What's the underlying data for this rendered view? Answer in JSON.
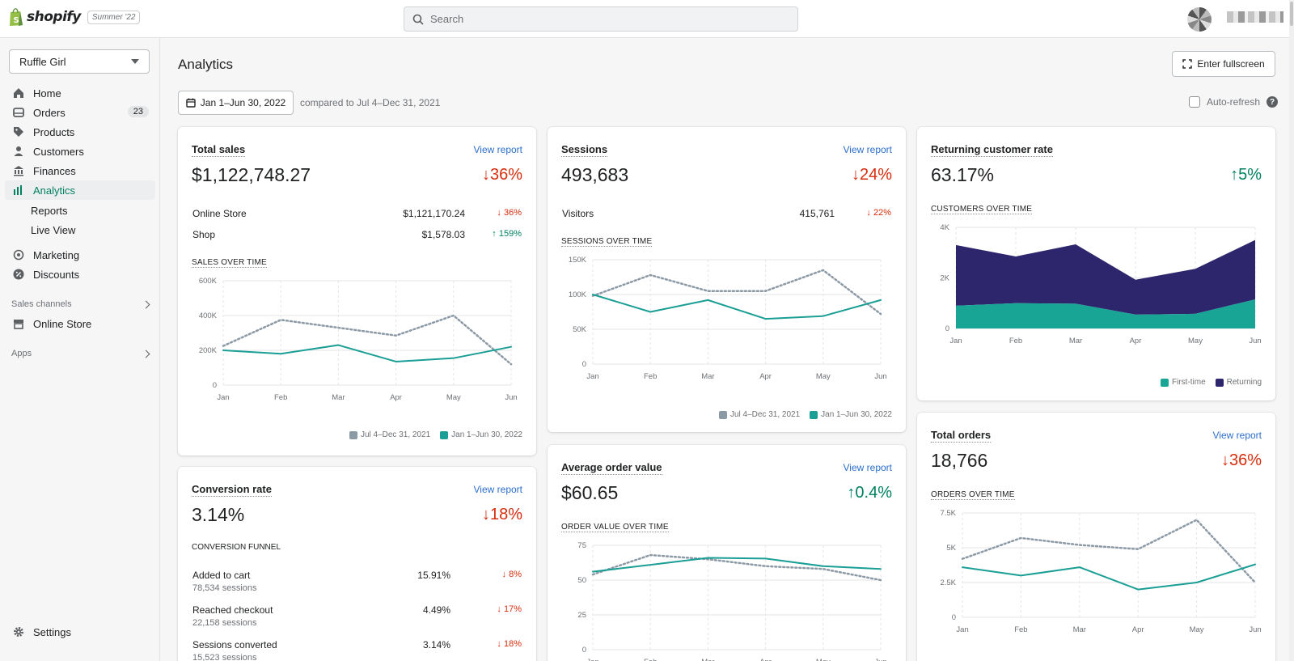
{
  "header": {
    "logo_text": "shopify",
    "edition": "Summer '22",
    "search_placeholder": "Search"
  },
  "sidebar": {
    "store_name": "Ruffle Girl",
    "items": [
      {
        "label": "Home",
        "icon": "home-icon"
      },
      {
        "label": "Orders",
        "icon": "orders-icon",
        "badge": "23"
      },
      {
        "label": "Products",
        "icon": "tag-icon"
      },
      {
        "label": "Customers",
        "icon": "person-icon"
      },
      {
        "label": "Finances",
        "icon": "bank-icon"
      },
      {
        "label": "Analytics",
        "icon": "bar-chart-icon",
        "active": true
      }
    ],
    "analytics_sub": [
      "Reports",
      "Live View"
    ],
    "items2": [
      {
        "label": "Marketing",
        "icon": "target-icon"
      },
      {
        "label": "Discounts",
        "icon": "discount-icon"
      }
    ],
    "sales_channels_label": "Sales channels",
    "online_store": "Online Store",
    "apps_label": "Apps",
    "settings": "Settings"
  },
  "page": {
    "title": "Analytics",
    "fullscreen_label": "Enter fullscreen",
    "date_range": "Jan 1–Jun 30, 2022",
    "compared_to": "compared to Jul 4–Dec 31, 2021",
    "auto_refresh": "Auto-refresh"
  },
  "colors": {
    "current": "#1a9e95",
    "previous": "#8c9aa6",
    "returning": "#2e266c",
    "first_time": "#18a595",
    "down": "#d72c0d",
    "up": "#008060",
    "link": "#2c6ecb"
  },
  "legend": {
    "previous": "Jul 4–Dec 31, 2021",
    "current": "Jan 1–Jun 30, 2022"
  },
  "cards": {
    "total_sales": {
      "title": "Total sales",
      "link": "View report",
      "value": "$1,122,748.27",
      "delta": "36%",
      "rows": [
        {
          "label": "Online Store",
          "value": "$1,121,170.24",
          "delta": "36%",
          "dir": "down"
        },
        {
          "label": "Shop",
          "value": "$1,578.03",
          "delta": "159%",
          "dir": "up"
        }
      ],
      "subtitle": "SALES OVER TIME"
    },
    "sessions": {
      "title": "Sessions",
      "link": "View report",
      "value": "493,683",
      "delta": "24%",
      "rows": [
        {
          "label": "Visitors",
          "value": "415,761",
          "delta": "22%",
          "dir": "down"
        }
      ],
      "subtitle": "SESSIONS OVER TIME"
    },
    "returning": {
      "title": "Returning customer rate",
      "value": "63.17%",
      "delta": "5%",
      "subtitle": "CUSTOMERS OVER TIME",
      "legend_first": "First-time",
      "legend_returning": "Returning"
    },
    "conversion": {
      "title": "Conversion rate",
      "link": "View report",
      "value": "3.14%",
      "delta": "18%",
      "subtitle": "CONVERSION FUNNEL",
      "funnel": [
        {
          "label": "Added to cart",
          "sessions": "78,534 sessions",
          "value": "15.91%",
          "delta": "8%"
        },
        {
          "label": "Reached checkout",
          "sessions": "22,158 sessions",
          "value": "4.49%",
          "delta": "17%"
        },
        {
          "label": "Sessions converted",
          "sessions": "15,523 sessions",
          "value": "3.14%",
          "delta": "18%"
        }
      ]
    },
    "aov": {
      "title": "Average order value",
      "link": "View report",
      "value": "$60.65",
      "delta": "0.4%",
      "subtitle": "ORDER VALUE OVER TIME"
    },
    "orders": {
      "title": "Total orders",
      "link": "View report",
      "value": "18,766",
      "delta": "36%",
      "subtitle": "ORDERS OVER TIME"
    }
  },
  "chart_data": [
    {
      "type": "line",
      "id": "sales",
      "x": [
        "Jan",
        "Feb",
        "Mar",
        "Apr",
        "May",
        "Jun"
      ],
      "ylim": [
        0,
        600000
      ],
      "yticks": [
        "0",
        "200K",
        "400K",
        "600K"
      ],
      "yticks_values": [
        0,
        200000,
        400000,
        600000
      ],
      "series": [
        {
          "name": "Jul 4–Dec 31, 2021",
          "values": [
            225000,
            375000,
            330000,
            285000,
            400000,
            120000
          ]
        },
        {
          "name": "Jan 1–Jun 30, 2022",
          "values": [
            200000,
            180000,
            230000,
            135000,
            155000,
            220000
          ]
        }
      ]
    },
    {
      "type": "line",
      "id": "sessions",
      "x": [
        "Jan",
        "Feb",
        "Mar",
        "Apr",
        "May",
        "Jun"
      ],
      "ylim": [
        0,
        150000
      ],
      "yticks": [
        "0",
        "50K",
        "100K",
        "150K"
      ],
      "yticks_values": [
        0,
        50000,
        100000,
        150000
      ],
      "series": [
        {
          "name": "Jul 4–Dec 31, 2021",
          "values": [
            98000,
            128000,
            105000,
            105000,
            135000,
            72000
          ]
        },
        {
          "name": "Jan 1–Jun 30, 2022",
          "values": [
            100000,
            75000,
            92000,
            65000,
            69000,
            92000
          ]
        }
      ]
    },
    {
      "type": "area",
      "id": "customers",
      "x": [
        "Jan",
        "Feb",
        "Mar",
        "Apr",
        "May",
        "Jun"
      ],
      "ylim": [
        0,
        4000
      ],
      "yticks": [
        "0",
        "2K",
        "4K"
      ],
      "yticks_values": [
        0,
        2000,
        4000
      ],
      "stacked": true,
      "series": [
        {
          "name": "First-time",
          "values": [
            900,
            1000,
            980,
            550,
            580,
            1150
          ]
        },
        {
          "name": "Returning",
          "values": [
            2400,
            1850,
            2350,
            1380,
            1780,
            2350
          ]
        }
      ]
    },
    {
      "type": "line",
      "id": "aov",
      "x": [
        "Jan",
        "Feb",
        "Mar",
        "Apr",
        "May",
        "Jun"
      ],
      "ylim": [
        0,
        75
      ],
      "yticks": [
        "0",
        "25",
        "50",
        "75"
      ],
      "yticks_values": [
        0,
        25,
        50,
        75
      ],
      "series": [
        {
          "name": "Jul 4–Dec 31, 2021",
          "values": [
            54,
            68,
            65,
            60,
            58,
            50
          ]
        },
        {
          "name": "Jan 1–Jun 30, 2022",
          "values": [
            56,
            61,
            66,
            65.5,
            60,
            58
          ]
        }
      ]
    },
    {
      "type": "line",
      "id": "orders",
      "x": [
        "Jan",
        "Feb",
        "Mar",
        "Apr",
        "May",
        "Jun"
      ],
      "ylim": [
        0,
        7500
      ],
      "yticks": [
        "0",
        "2.5K",
        "5K",
        "7.5K"
      ],
      "yticks_values": [
        0,
        2500,
        5000,
        7500
      ],
      "series": [
        {
          "name": "Jul 4–Dec 31, 2021",
          "values": [
            4200,
            5700,
            5200,
            4900,
            7000,
            2500
          ]
        },
        {
          "name": "Jan 1–Jun 30, 2022",
          "values": [
            3600,
            3000,
            3600,
            2000,
            2500,
            3800
          ]
        }
      ]
    }
  ]
}
